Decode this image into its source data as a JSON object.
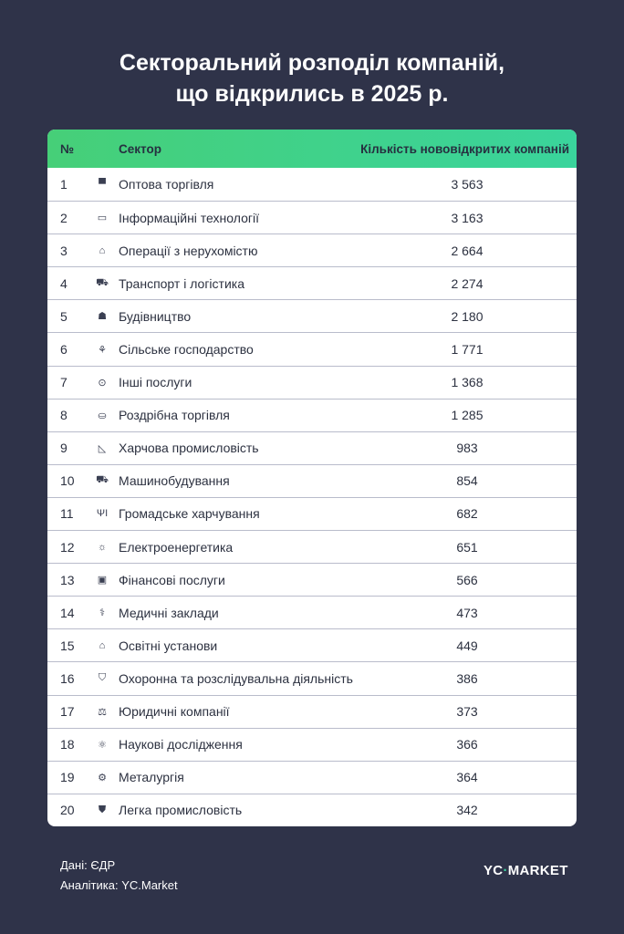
{
  "title_line1": "Секторальний розподіл компаній,",
  "title_line2": "що відкрились в 2025 р.",
  "chart_data": {
    "type": "table",
    "columns": [
      "№",
      "Сектор",
      "Кількість нововідкритих компаній"
    ],
    "rows": [
      {
        "n": "1",
        "icon": "wholesale-icon",
        "glyph": "▀",
        "sector": "Оптова торгівля",
        "value": "3 563"
      },
      {
        "n": "2",
        "icon": "laptop-icon",
        "glyph": "▭",
        "sector": "Інформаційні технології",
        "value": "3 163"
      },
      {
        "n": "3",
        "icon": "house-icon",
        "glyph": "⌂",
        "sector": "Операції з нерухомістю",
        "value": "2 664"
      },
      {
        "n": "4",
        "icon": "car-icon",
        "glyph": "⛟",
        "sector": "Транспорт і логістика",
        "value": "2 274"
      },
      {
        "n": "5",
        "icon": "worker-icon",
        "glyph": "☗",
        "sector": "Будівництво",
        "value": "2 180"
      },
      {
        "n": "6",
        "icon": "sprout-icon",
        "glyph": "⚘",
        "sector": "Сільське господарство",
        "value": "1 771"
      },
      {
        "n": "7",
        "icon": "dots-icon",
        "glyph": "⊙",
        "sector": "Інші послуги",
        "value": "1 368"
      },
      {
        "n": "8",
        "icon": "basket-icon",
        "glyph": "⛀",
        "sector": "Роздрібна торгівля",
        "value": "1 285"
      },
      {
        "n": "9",
        "icon": "pizza-icon",
        "glyph": "◺",
        "sector": "Харчова промисловість",
        "value": "983"
      },
      {
        "n": "10",
        "icon": "truck-icon",
        "glyph": "⛟",
        "sector": "Машинобудування",
        "value": "854"
      },
      {
        "n": "11",
        "icon": "cutlery-icon",
        "glyph": "ΨΙ",
        "sector": "Громадське харчування",
        "value": "682"
      },
      {
        "n": "12",
        "icon": "lightbulb-icon",
        "glyph": "☼",
        "sector": "Електроенергетика",
        "value": "651"
      },
      {
        "n": "13",
        "icon": "money-icon",
        "glyph": "▣",
        "sector": "Фінансові послуги",
        "value": "566"
      },
      {
        "n": "14",
        "icon": "medical-icon",
        "glyph": "⚕",
        "sector": "Медичні заклади",
        "value": "473"
      },
      {
        "n": "15",
        "icon": "graduation-cap-icon",
        "glyph": "⌂",
        "sector": "Освітні установи",
        "value": "449"
      },
      {
        "n": "16",
        "icon": "shield-icon",
        "glyph": "⛉",
        "sector": "Охоронна та розслідувальна діяльність",
        "value": "386"
      },
      {
        "n": "17",
        "icon": "scales-icon",
        "glyph": "⚖",
        "sector": "Юридичні компанії",
        "value": "373"
      },
      {
        "n": "18",
        "icon": "atom-icon",
        "glyph": "⚛",
        "sector": "Наукові дослідження",
        "value": "366"
      },
      {
        "n": "19",
        "icon": "metal-icon",
        "glyph": "⚙",
        "sector": "Металургія",
        "value": "364"
      },
      {
        "n": "20",
        "icon": "tshirt-icon",
        "glyph": "⛊",
        "sector": "Легка промисловість",
        "value": "342"
      }
    ]
  },
  "footer": {
    "source": "Дані: ЄДР",
    "analytics": "Аналітика: YC.Market"
  },
  "logo": {
    "text_a": "YC",
    "text_b": "MARKET"
  },
  "colors": {
    "background": "#2f3349",
    "header_start": "#46cf78",
    "header_end": "#3ad49c"
  }
}
